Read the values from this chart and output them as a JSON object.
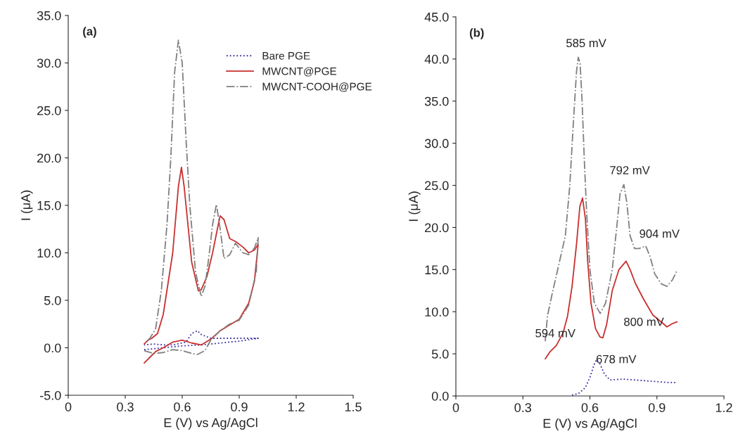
{
  "chart_data": [
    {
      "type": "line",
      "title": "(a)",
      "xlabel": "E (V) vs Ag/AgCl",
      "ylabel": "I (μA)",
      "xlim": [
        0,
        1.5
      ],
      "xticks": [
        0,
        0.3,
        0.6,
        0.9,
        1.2,
        1.5
      ],
      "ylim": [
        -5,
        35
      ],
      "yticks": [
        {
          "value": -5,
          "label": "-5.0"
        },
        {
          "value": 0,
          "label": "0.0"
        },
        {
          "value": 5,
          "label": "5.0"
        },
        {
          "value": 10,
          "label": "10.0"
        },
        {
          "value": 15,
          "label": "15.0"
        },
        {
          "value": 20,
          "label": "20.0"
        },
        {
          "value": 25,
          "label": "25.0"
        },
        {
          "value": 30,
          "label": "30.0"
        },
        {
          "value": 35,
          "label": "35.0"
        }
      ],
      "grid": false,
      "legend": "top right",
      "series": [
        {
          "name": "Bare PGE",
          "color": "#3a2fa0",
          "line_style": "dotted",
          "x": [
            0.4,
            0.5,
            0.6,
            0.7,
            0.8,
            0.9,
            1.0,
            0.95,
            0.85,
            0.75,
            0.7,
            0.68,
            0.65,
            0.62,
            0.55,
            0.5,
            0.45,
            0.4
          ],
          "values": [
            -0.2,
            0.0,
            0.2,
            0.3,
            0.5,
            0.7,
            1.0,
            1.0,
            1.0,
            1.0,
            1.4,
            1.8,
            1.5,
            0.6,
            0.3,
            0.3,
            0.4,
            0.3
          ]
        },
        {
          "name": "MWCNT@PGE",
          "color": "#c8302e",
          "line_style": "solid",
          "x": [
            0.4,
            0.43,
            0.46,
            0.5,
            0.55,
            0.6,
            0.65,
            0.7,
            0.75,
            0.8,
            0.85,
            0.9,
            0.95,
            0.98,
            1.0,
            0.98,
            0.95,
            0.92,
            0.88,
            0.85,
            0.82,
            0.8,
            0.79,
            0.76,
            0.73,
            0.7,
            0.685,
            0.65,
            0.63,
            0.61,
            0.596,
            0.58,
            0.55,
            0.5,
            0.47,
            0.44,
            0.42,
            0.4
          ],
          "values": [
            -1.6,
            -1.0,
            -0.4,
            0.0,
            0.6,
            0.8,
            0.5,
            0.3,
            0.9,
            1.8,
            2.4,
            3.0,
            4.7,
            7.0,
            10.9,
            10.3,
            10.0,
            10.6,
            11.2,
            11.5,
            13.5,
            13.9,
            13.0,
            10.0,
            7.5,
            6.1,
            6.0,
            9.0,
            13.0,
            17.0,
            19.0,
            17.0,
            10.0,
            3.5,
            1.5,
            1.0,
            0.8,
            0.4
          ]
        },
        {
          "name": "MWCNT-COOH@PGE",
          "color": "#808080",
          "line_style": "dashdot",
          "x": [
            0.4,
            0.45,
            0.5,
            0.55,
            0.6,
            0.65,
            0.68,
            0.72,
            0.75,
            0.8,
            0.85,
            0.9,
            0.95,
            0.99,
            1.0,
            0.98,
            0.95,
            0.92,
            0.88,
            0.85,
            0.82,
            0.8,
            0.78,
            0.76,
            0.74,
            0.72,
            0.7,
            0.67,
            0.64,
            0.62,
            0.6,
            0.58,
            0.56,
            0.54,
            0.52,
            0.49,
            0.46,
            0.43,
            0.41,
            0.4
          ],
          "values": [
            -0.3,
            -0.6,
            -0.5,
            -0.2,
            -0.3,
            -0.6,
            -0.7,
            -0.3,
            0.8,
            1.8,
            2.5,
            2.9,
            4.5,
            8.0,
            11.6,
            10.5,
            9.8,
            10.0,
            11.0,
            9.8,
            9.4,
            12.5,
            15.1,
            13.0,
            9.5,
            6.5,
            5.4,
            8.0,
            15.0,
            22.0,
            30.0,
            32.4,
            29.0,
            20.0,
            13.0,
            6.0,
            2.0,
            1.0,
            0.6,
            0.4
          ]
        }
      ]
    },
    {
      "type": "line",
      "title": "(b)",
      "xlabel": "E (V) vs Ag/AgCl",
      "ylabel": "I (μA)",
      "xlim": [
        0,
        1.2
      ],
      "xticks": [
        0,
        0.3,
        0.6,
        0.9,
        1.2
      ],
      "ylim": [
        0,
        45
      ],
      "yticks": [
        {
          "value": 0,
          "label": "0.0"
        },
        {
          "value": 5,
          "label": "5.0"
        },
        {
          "value": 10,
          "label": "10.0"
        },
        {
          "value": 15,
          "label": "15.0"
        },
        {
          "value": 20,
          "label": "20.0"
        },
        {
          "value": 25,
          "label": "25.0"
        },
        {
          "value": 30,
          "label": "30.0"
        },
        {
          "value": 35,
          "label": "35.0"
        },
        {
          "value": 40,
          "label": "40.0"
        },
        {
          "value": 45,
          "label": "45.0"
        }
      ],
      "grid": false,
      "series": [
        {
          "color": "#3a2fa0",
          "line_style": "dotted",
          "x": [
            0.52,
            0.55,
            0.58,
            0.6,
            0.62,
            0.63,
            0.645,
            0.665,
            0.69,
            0.75,
            0.8,
            0.85,
            0.9,
            0.95,
            0.99
          ],
          "values": [
            0.1,
            0.3,
            1.0,
            2.2,
            3.8,
            4.3,
            3.8,
            2.6,
            1.9,
            2.0,
            1.9,
            1.8,
            1.7,
            1.6,
            1.6
          ]
        },
        {
          "color": "#c8302e",
          "line_style": "solid",
          "x": [
            0.4,
            0.42,
            0.45,
            0.48,
            0.5,
            0.52,
            0.54,
            0.555,
            0.567,
            0.58,
            0.59,
            0.605,
            0.625,
            0.645,
            0.658,
            0.675,
            0.7,
            0.73,
            0.762,
            0.78,
            0.803,
            0.84,
            0.882,
            0.91,
            0.945,
            0.97,
            0.99
          ],
          "values": [
            4.4,
            5.2,
            6.0,
            7.5,
            9.5,
            13,
            18,
            22.5,
            23.5,
            21,
            16,
            11,
            8,
            7.0,
            6.9,
            8.5,
            12.5,
            15.0,
            16.0,
            15,
            13.4,
            11.5,
            9.6,
            9.0,
            8.2,
            8.6,
            8.8
          ]
        },
        {
          "color": "#808080",
          "line_style": "dashdot",
          "x": [
            0.4,
            0.41,
            0.43,
            0.46,
            0.49,
            0.51,
            0.525,
            0.54,
            0.548,
            0.556,
            0.565,
            0.575,
            0.585,
            0.6,
            0.62,
            0.646,
            0.67,
            0.7,
            0.72,
            0.735,
            0.752,
            0.765,
            0.78,
            0.8,
            0.82,
            0.85,
            0.87,
            0.89,
            0.92,
            0.945,
            0.97,
            0.99
          ],
          "values": [
            6.5,
            9.5,
            12,
            15.5,
            19,
            25,
            32,
            38.5,
            40.2,
            39.5,
            35,
            28,
            22,
            15,
            11,
            9.8,
            11,
            15,
            20,
            24,
            25.1,
            23,
            19,
            17.5,
            17.5,
            17.8,
            16.5,
            14.5,
            13.3,
            13.0,
            13.8,
            14.9
          ]
        }
      ],
      "annotations": [
        {
          "text": "585 mV",
          "x": 0.548,
          "y": 40.2
        },
        {
          "text": "792 mV",
          "x": 0.752,
          "y": 25.1
        },
        {
          "text": "904 mV",
          "x": 0.85,
          "y": 17.8
        },
        {
          "text": "594 mV",
          "x": 0.48,
          "y": 7.5
        },
        {
          "text": "800 mV",
          "x": 0.675,
          "y": 8.5
        },
        {
          "text": "678 mV",
          "x": 0.63,
          "y": 4.3
        }
      ]
    }
  ]
}
